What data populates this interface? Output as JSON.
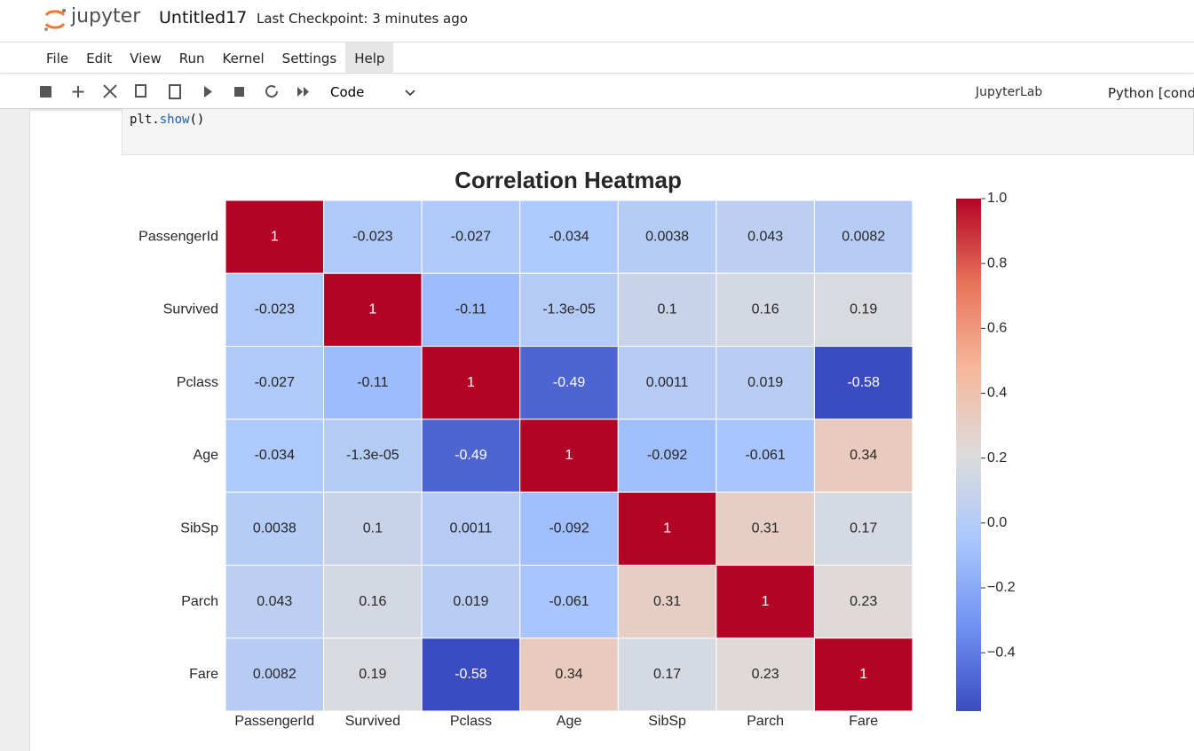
{
  "header": {
    "logo": "jupyter",
    "title": "Untitled17",
    "checkpoint": "Last Checkpoint: 3 minutes ago"
  },
  "menu": [
    "File",
    "Edit",
    "View",
    "Run",
    "Kernel",
    "Settings",
    "Help"
  ],
  "toolbar": {
    "cell_type": "Code",
    "launcher": "JupyterLab",
    "kernel": "Python [conda"
  },
  "code": {
    "object": "plt",
    "method": "show",
    "args": "()"
  },
  "chart_data": {
    "type": "heatmap",
    "title": "Correlation Heatmap",
    "rows": [
      "PassengerId",
      "Survived",
      "Pclass",
      "Age",
      "SibSp",
      "Parch",
      "Fare"
    ],
    "columns": [
      "PassengerId",
      "Survived",
      "Pclass",
      "Age",
      "SibSp",
      "Parch",
      "Fare"
    ],
    "values": [
      [
        1,
        -0.023,
        -0.027,
        -0.034,
        0.0038,
        0.043,
        0.0082
      ],
      [
        -0.023,
        1,
        -0.11,
        -1.3e-05,
        0.1,
        0.16,
        0.19
      ],
      [
        -0.027,
        -0.11,
        1,
        -0.49,
        0.0011,
        0.019,
        -0.58
      ],
      [
        -0.034,
        -1.3e-05,
        -0.49,
        1,
        -0.092,
        -0.061,
        0.34
      ],
      [
        0.0038,
        0.1,
        0.0011,
        -0.092,
        1,
        0.31,
        0.17
      ],
      [
        0.043,
        0.16,
        0.019,
        -0.061,
        0.31,
        1,
        0.23
      ],
      [
        0.0082,
        0.19,
        -0.58,
        0.34,
        0.17,
        0.23,
        1
      ]
    ],
    "value_labels": [
      [
        "1",
        "-0.023",
        "-0.027",
        "-0.034",
        "0.0038",
        "0.043",
        "0.0082"
      ],
      [
        "-0.023",
        "1",
        "-0.11",
        "-1.3e-05",
        "0.1",
        "0.16",
        "0.19"
      ],
      [
        "-0.027",
        "-0.11",
        "1",
        "-0.49",
        "0.0011",
        "0.019",
        "-0.58"
      ],
      [
        "-0.034",
        "-1.3e-05",
        "-0.49",
        "1",
        "-0.092",
        "-0.061",
        "0.34"
      ],
      [
        "0.0038",
        "0.1",
        "0.0011",
        "-0.092",
        "1",
        "0.31",
        "0.17"
      ],
      [
        "0.043",
        "0.16",
        "0.019",
        "-0.061",
        "0.31",
        "1",
        "0.23"
      ],
      [
        "0.0082",
        "0.19",
        "-0.58",
        "0.34",
        "0.17",
        "0.23",
        "1"
      ]
    ],
    "colormap": [
      "#3b4cc0",
      "#6f92f3",
      "#aac7fd",
      "#dddcdc",
      "#f7b89c",
      "#e7745b",
      "#b40426"
    ],
    "clim": [
      -0.58,
      1
    ],
    "cticks": [
      {
        "value": -0.4,
        "label": "−0.4"
      },
      {
        "value": -0.2,
        "label": "−0.2"
      },
      {
        "value": 0,
        "label": "0.0"
      },
      0.2,
      0.4,
      0.6,
      0.8,
      {
        "value": 1,
        "label": "1.0"
      }
    ]
  }
}
